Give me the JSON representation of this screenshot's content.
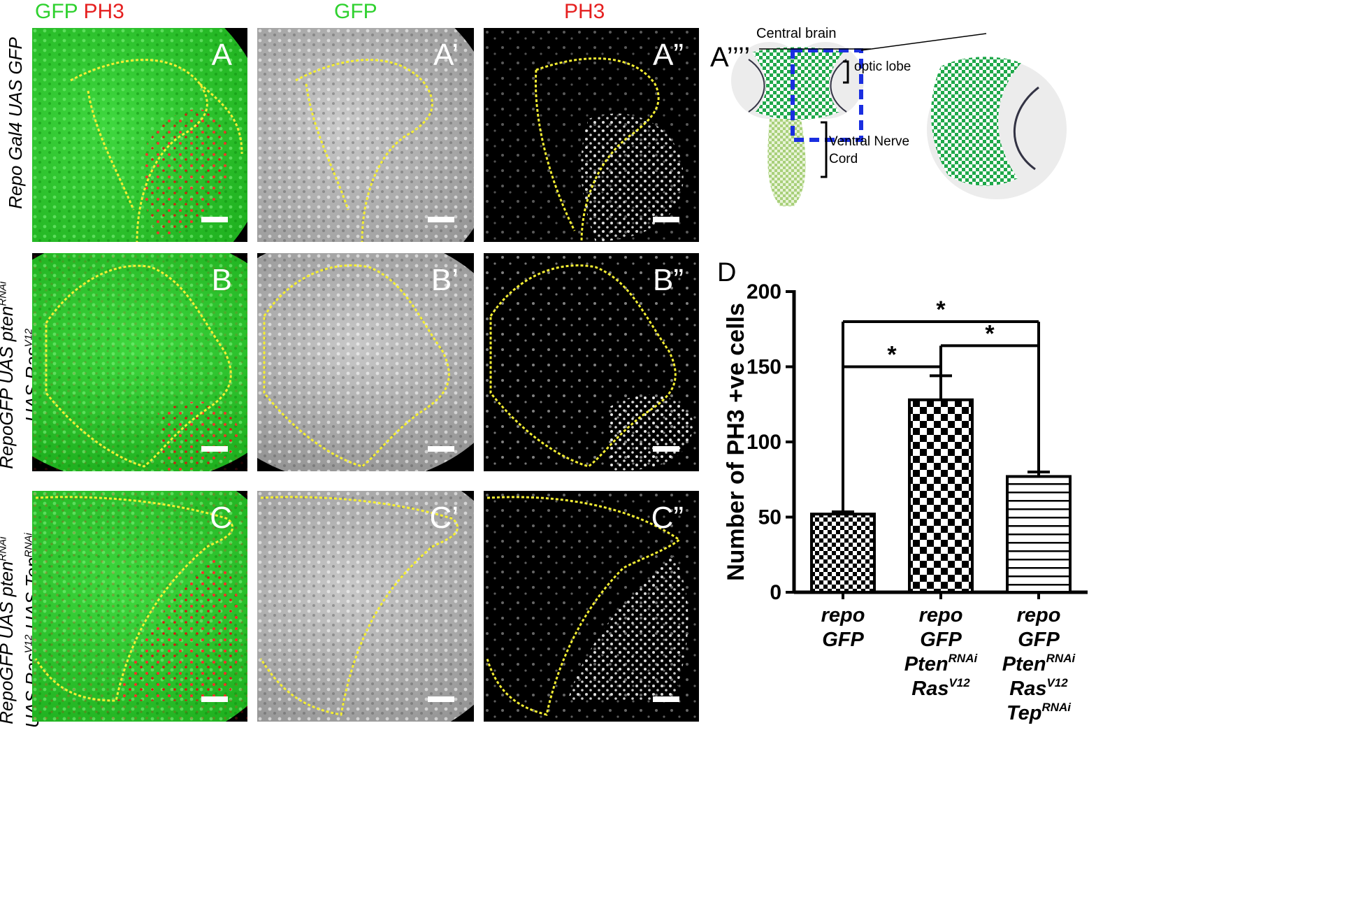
{
  "headers": {
    "col1_a": "GFP",
    "col1_b": "PH3",
    "col2": "GFP",
    "col3": "PH3"
  },
  "rows": [
    {
      "label_line1": "Repo Gal4 UAS GFP",
      "label_line2": "",
      "sup1": "",
      "sup2": ""
    },
    {
      "label_line1": "RepoGFP UAS pten",
      "sup1": "RNAi",
      "label_line2": "UAS Ras",
      "sup2": "V12"
    },
    {
      "label_line1": "RepoGFP UAS pten",
      "sup1": "RNAi",
      "label_line2": "UAS Ras",
      "sup2": "V12",
      "label_line2b": " UAS Tep",
      "sup3": "RNAi"
    }
  ],
  "panel_labels": [
    "A",
    "A’",
    "A”",
    "B",
    "B’",
    "B”",
    "C",
    "C’",
    "C”"
  ],
  "schematic": {
    "label": "A’’’’",
    "central_brain": "Central brain",
    "optic_lobe": "optic lobe",
    "vnc_line1": "Ventral Nerve",
    "vnc_line2": "Cord"
  },
  "chart_panel_label": "D",
  "chart_data": {
    "type": "bar",
    "ylabel": "Number of PH3 +ve cells",
    "ylim": [
      0,
      200
    ],
    "yticks": [
      0,
      50,
      100,
      150,
      200
    ],
    "categories": [
      {
        "lines": [
          {
            "t": "repo",
            "s": ""
          },
          {
            "t": "GFP",
            "s": ""
          }
        ]
      },
      {
        "lines": [
          {
            "t": "repo",
            "s": ""
          },
          {
            "t": "GFP",
            "s": ""
          },
          {
            "t": "Pten",
            "s": "RNAi"
          },
          {
            "t": "Ras",
            "s": "V12"
          }
        ]
      },
      {
        "lines": [
          {
            "t": "repo",
            "s": ""
          },
          {
            "t": "GFP",
            "s": ""
          },
          {
            "t": "Pten",
            "s": "RNAi"
          },
          {
            "t": "Ras",
            "s": "V12"
          },
          {
            "t": "Tep",
            "s": "RNAi"
          }
        ]
      }
    ],
    "values": [
      52,
      128,
      77
    ],
    "errors": [
      1.5,
      16,
      3
    ],
    "patterns": [
      "small-checker",
      "large-checker",
      "horizontal-lines"
    ],
    "significance": [
      {
        "from": 0,
        "to": 1,
        "label": "*"
      },
      {
        "from": 1,
        "to": 2,
        "label": "*"
      },
      {
        "from": 0,
        "to": 2,
        "label": "*"
      }
    ]
  }
}
